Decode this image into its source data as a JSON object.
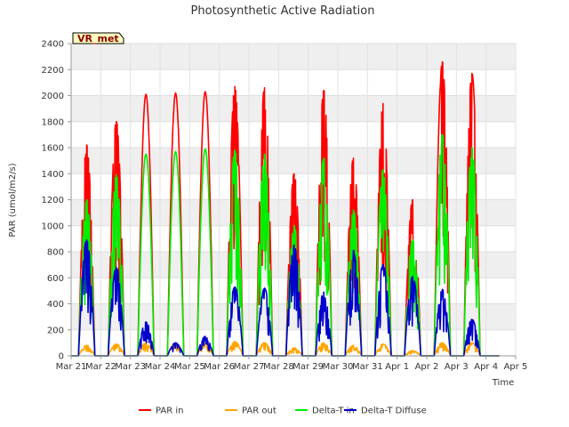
{
  "chart_data": {
    "type": "line",
    "title": "Photosynthetic Active Radiation",
    "xlabel": "Time",
    "ylabel": "PAR (umol/m2/s)",
    "ylim": [
      0,
      2400
    ],
    "yticks": [
      0,
      200,
      400,
      600,
      800,
      1000,
      1200,
      1400,
      1600,
      1800,
      2000,
      2200,
      2400
    ],
    "xlim": [
      0,
      15
    ],
    "xticks": [
      0,
      1,
      2,
      3,
      4,
      5,
      6,
      7,
      8,
      9,
      10,
      11,
      12,
      13,
      14,
      15
    ],
    "xtick_labels": [
      "Mar 21",
      "Mar 22",
      "Mar 23",
      "Mar 24",
      "Mar 25",
      "Mar 26",
      "Mar 27",
      "Mar 28",
      "Mar 29",
      "Mar 30",
      "Mar 31",
      "Apr 1",
      "Apr 2",
      "Apr 3",
      "Apr 4",
      "Apr 5"
    ],
    "grid": true,
    "background_bands": true,
    "badge": "VR_met",
    "legend_position": "bottom-center",
    "series": [
      {
        "name": "PAR in",
        "color": "#ff0000",
        "days": [
          {
            "day": 0,
            "peak": 1620,
            "jagged": true
          },
          {
            "day": 1,
            "peak": 1800,
            "jagged": true
          },
          {
            "day": 2,
            "peak": 2010,
            "jagged": false
          },
          {
            "day": 3,
            "peak": 2020,
            "jagged": false
          },
          {
            "day": 4,
            "peak": 2030,
            "jagged": false
          },
          {
            "day": 5,
            "peak": 2070,
            "jagged": true
          },
          {
            "day": 6,
            "peak": 2060,
            "jagged": true
          },
          {
            "day": 7,
            "peak": 1400,
            "jagged": true
          },
          {
            "day": 8,
            "peak": 2040,
            "jagged": true
          },
          {
            "day": 9,
            "peak": 1520,
            "jagged": true
          },
          {
            "day": 10,
            "peak": 1940,
            "jagged": true
          },
          {
            "day": 11,
            "peak": 1200,
            "jagged": true
          },
          {
            "day": 12,
            "peak": 2260,
            "jagged": true
          },
          {
            "day": 13,
            "peak": 2170,
            "jagged": true
          }
        ]
      },
      {
        "name": "PAR out",
        "color": "#ffa500",
        "days": [
          {
            "day": 0,
            "peak": 80,
            "jagged": true
          },
          {
            "day": 1,
            "peak": 90,
            "jagged": true
          },
          {
            "day": 2,
            "peak": 100,
            "jagged": true
          },
          {
            "day": 3,
            "peak": 100,
            "jagged": true
          },
          {
            "day": 4,
            "peak": 100,
            "jagged": true
          },
          {
            "day": 5,
            "peak": 110,
            "jagged": true
          },
          {
            "day": 6,
            "peak": 100,
            "jagged": true
          },
          {
            "day": 7,
            "peak": 60,
            "jagged": true
          },
          {
            "day": 8,
            "peak": 100,
            "jagged": true
          },
          {
            "day": 9,
            "peak": 80,
            "jagged": true
          },
          {
            "day": 10,
            "peak": 90,
            "jagged": true
          },
          {
            "day": 11,
            "peak": 40,
            "jagged": true
          },
          {
            "day": 12,
            "peak": 100,
            "jagged": true
          },
          {
            "day": 13,
            "peak": 100,
            "jagged": true
          }
        ]
      },
      {
        "name": "Delta-T in",
        "color": "#00ee00",
        "days": [
          {
            "day": 0,
            "peak": 1200,
            "jagged": true
          },
          {
            "day": 1,
            "peak": 1390,
            "jagged": true
          },
          {
            "day": 2,
            "peak": 1550,
            "jagged": false
          },
          {
            "day": 3,
            "peak": 1570,
            "jagged": false
          },
          {
            "day": 4,
            "peak": 1590,
            "jagged": false
          },
          {
            "day": 5,
            "peak": 1580,
            "jagged": true
          },
          {
            "day": 6,
            "peak": 1550,
            "jagged": true
          },
          {
            "day": 7,
            "peak": 1000,
            "jagged": true
          },
          {
            "day": 8,
            "peak": 1520,
            "jagged": true
          },
          {
            "day": 9,
            "peak": 1120,
            "jagged": true
          },
          {
            "day": 10,
            "peak": 1430,
            "jagged": true
          },
          {
            "day": 11,
            "peak": 890,
            "jagged": true
          },
          {
            "day": 12,
            "peak": 1700,
            "jagged": true
          },
          {
            "day": 13,
            "peak": 1600,
            "jagged": true
          }
        ]
      },
      {
        "name": "Delta-T Diffuse",
        "color": "#0000cc",
        "days": [
          {
            "day": 0,
            "peak": 890,
            "jagged": true
          },
          {
            "day": 1,
            "peak": 680,
            "jagged": true
          },
          {
            "day": 2,
            "peak": 260,
            "jagged": true
          },
          {
            "day": 3,
            "peak": 100,
            "jagged": true
          },
          {
            "day": 4,
            "peak": 150,
            "jagged": true
          },
          {
            "day": 5,
            "peak": 530,
            "jagged": true
          },
          {
            "day": 6,
            "peak": 520,
            "jagged": true
          },
          {
            "day": 7,
            "peak": 850,
            "jagged": true
          },
          {
            "day": 8,
            "peak": 490,
            "jagged": true
          },
          {
            "day": 9,
            "peak": 810,
            "jagged": true
          },
          {
            "day": 10,
            "peak": 700,
            "jagged": true
          },
          {
            "day": 11,
            "peak": 610,
            "jagged": true
          },
          {
            "day": 12,
            "peak": 510,
            "jagged": true
          },
          {
            "day": 13,
            "peak": 280,
            "jagged": true
          }
        ]
      }
    ]
  }
}
